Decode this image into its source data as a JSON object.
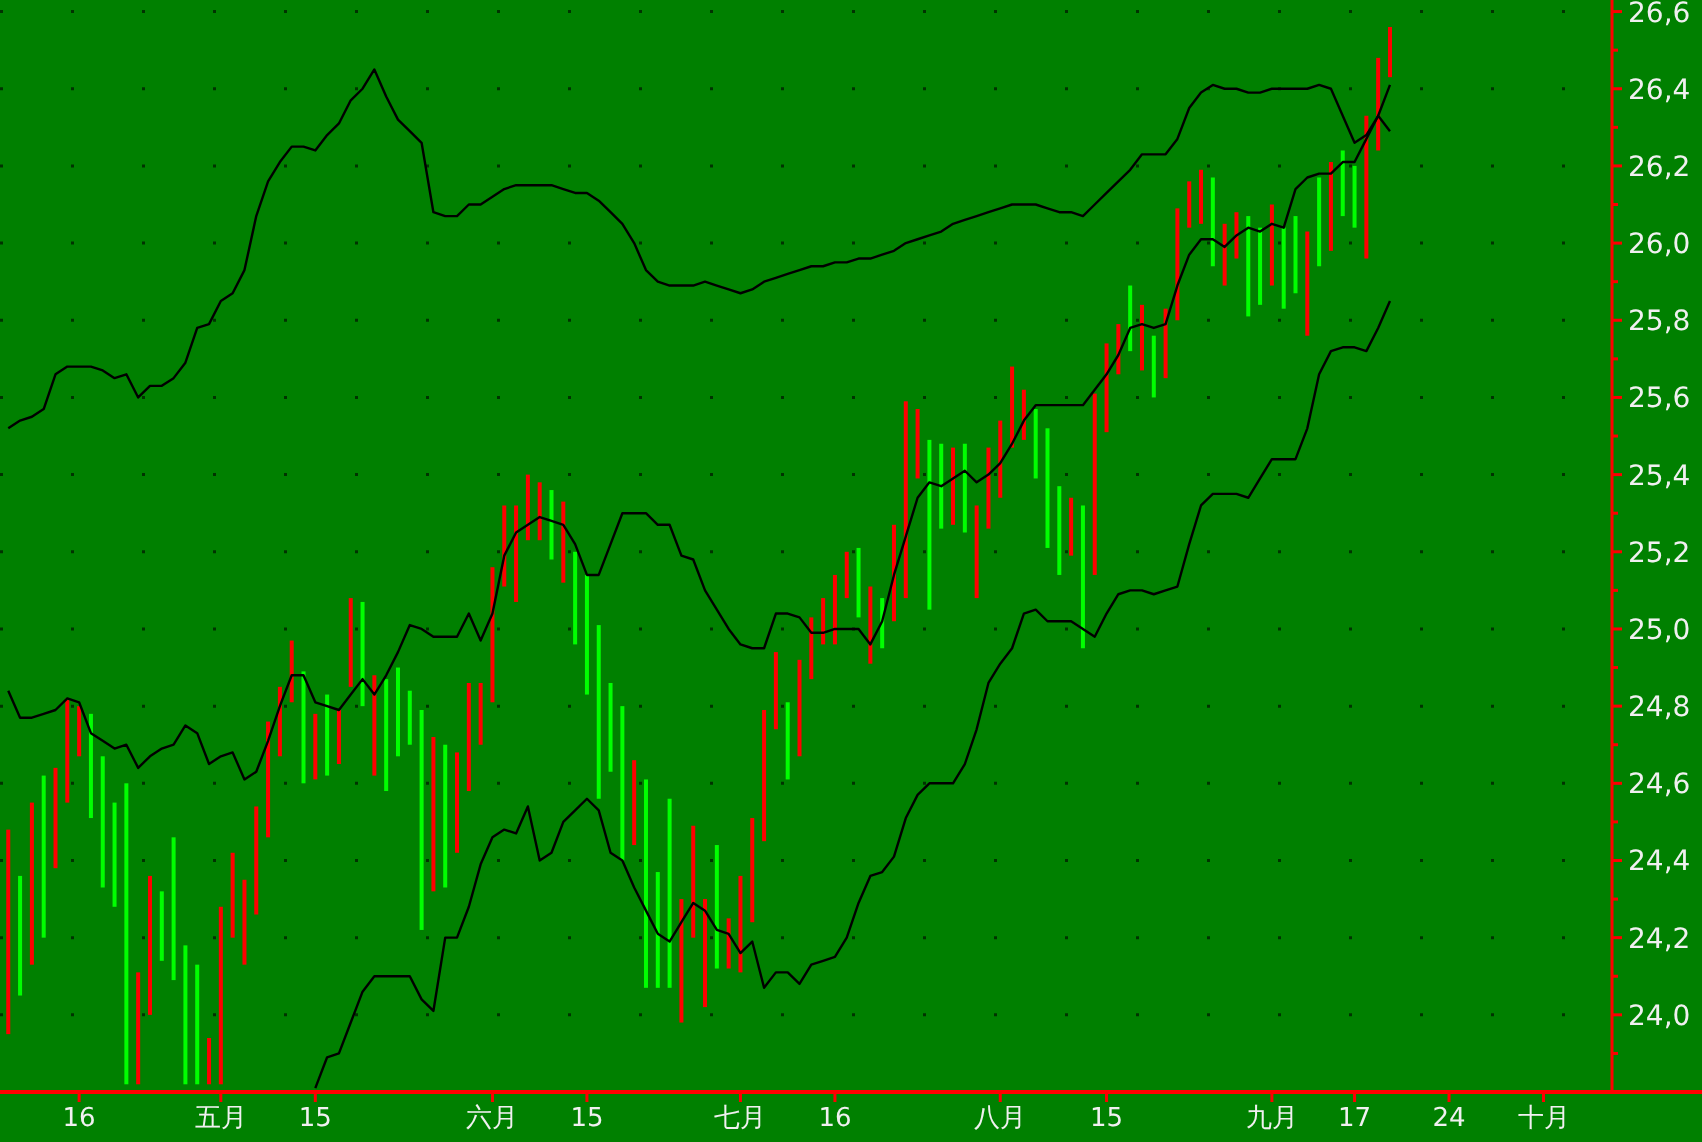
{
  "chart_data": {
    "type": "bar",
    "ylim": [
      23.8,
      26.63
    ],
    "grid": true,
    "categories": [
      null,
      null,
      null,
      null,
      null,
      null,
      "16",
      null,
      null,
      null,
      null,
      null,
      null,
      null,
      null,
      null,
      null,
      null,
      "五月",
      null,
      null,
      null,
      null,
      null,
      null,
      null,
      "15",
      null,
      null,
      null,
      null,
      null,
      null,
      null,
      null,
      null,
      null,
      null,
      null,
      null,
      null,
      "六月",
      null,
      null,
      null,
      null,
      null,
      null,
      null,
      "15",
      null,
      null,
      null,
      null,
      null,
      null,
      null,
      null,
      null,
      null,
      null,
      null,
      "七月",
      null,
      null,
      null,
      null,
      null,
      null,
      null,
      "16",
      null,
      null,
      null,
      null,
      null,
      null,
      null,
      null,
      null,
      null,
      null,
      null,
      null,
      "八月",
      null,
      null,
      null,
      null,
      null,
      null,
      null,
      null,
      "15",
      null,
      null,
      null,
      null,
      null,
      null,
      null,
      null,
      null,
      null,
      null,
      null,
      null,
      "九月",
      null,
      null,
      null,
      null,
      null,
      null,
      "17",
      null,
      null,
      null,
      null,
      null,
      null,
      null,
      "24",
      null,
      null,
      null,
      null,
      null,
      null,
      null,
      "十月",
      null,
      null,
      null,
      null,
      null,
      null
    ],
    "yticks": [
      {
        "value": 23.9,
        "label": null
      },
      {
        "value": 24.0,
        "label": "24,0"
      },
      {
        "value": 24.1,
        "label": null
      },
      {
        "value": 24.2,
        "label": "24,2"
      },
      {
        "value": 24.3,
        "label": null
      },
      {
        "value": 24.4,
        "label": "24,4"
      },
      {
        "value": 24.5,
        "label": null
      },
      {
        "value": 24.6,
        "label": "24,6"
      },
      {
        "value": 24.7,
        "label": null
      },
      {
        "value": 24.8,
        "label": "24,8"
      },
      {
        "value": 24.9,
        "label": null
      },
      {
        "value": 25.0,
        "label": "25,0"
      },
      {
        "value": 25.1,
        "label": null
      },
      {
        "value": 25.2,
        "label": "25,2"
      },
      {
        "value": 25.3,
        "label": null
      },
      {
        "value": 25.4,
        "label": "25,4"
      },
      {
        "value": 25.5,
        "label": null
      },
      {
        "value": 25.6,
        "label": "25,6"
      },
      {
        "value": 25.7,
        "label": null
      },
      {
        "value": 25.8,
        "label": "25,8"
      },
      {
        "value": 25.9,
        "label": null
      },
      {
        "value": 26.0,
        "label": "26,0"
      },
      {
        "value": 26.1,
        "label": null
      },
      {
        "value": 26.2,
        "label": "26,2"
      },
      {
        "value": 26.3,
        "label": null
      },
      {
        "value": 26.4,
        "label": "26,4"
      },
      {
        "value": 26.5,
        "label": null
      },
      {
        "value": 26.6,
        "label": "26,6"
      }
    ],
    "series": [
      {
        "base": [
          23.95,
          24.05,
          24.13,
          24.2,
          24.38,
          24.55,
          24.67,
          24.51,
          24.33,
          24.28,
          23.82,
          23.82,
          24.0,
          24.14,
          24.09,
          23.82,
          23.82,
          23.82,
          23.82,
          24.2,
          24.13,
          24.26,
          24.46,
          24.67,
          24.81,
          24.6,
          24.61,
          24.62,
          24.65,
          24.85,
          24.8,
          24.62,
          24.58,
          24.67,
          24.7,
          24.22,
          24.32,
          24.33,
          24.42,
          24.58,
          24.7,
          24.81,
          25.11,
          25.07,
          25.23,
          25.23,
          25.18,
          25.12,
          24.96,
          24.83,
          24.56,
          24.63,
          24.4,
          24.44,
          24.07,
          24.07,
          24.07,
          23.98,
          24.2,
          24.02,
          24.12,
          24.12,
          24.11,
          24.24,
          24.45,
          24.74,
          24.61,
          24.67,
          24.87,
          24.96,
          24.96,
          25.08,
          25.03,
          24.91,
          24.95,
          25.02,
          25.08,
          25.39,
          25.05,
          25.26,
          25.27,
          25.25,
          25.08,
          25.26,
          25.34,
          25.47,
          25.49,
          25.39,
          25.21,
          25.14,
          25.19,
          24.95,
          25.14,
          25.51,
          25.66,
          25.72,
          25.67,
          25.6,
          25.65,
          25.8,
          26.04,
          26.05,
          25.94,
          25.89,
          25.96,
          25.81,
          25.84,
          25.89,
          25.83,
          25.87,
          25.76,
          25.94,
          25.98,
          26.07,
          26.04,
          25.96,
          26.24,
          26.43,
          null,
          null,
          null,
          null,
          null,
          null,
          null,
          null,
          null,
          null,
          null,
          null,
          null,
          null,
          null,
          null,
          null,
          null,
          null
        ],
        "values": [
          0.53,
          0.31,
          0.42,
          0.42,
          0.26,
          0.27,
          0.13,
          0.27,
          0.34,
          0.27,
          0.78,
          0.29,
          0.36,
          0.18,
          0.37,
          0.36,
          0.31,
          0.12,
          0.46,
          0.22,
          0.22,
          0.28,
          0.3,
          0.18,
          0.16,
          0.29,
          0.17,
          0.21,
          0.14,
          0.23,
          0.27,
          0.26,
          0.29,
          0.23,
          0.14,
          0.57,
          0.4,
          0.37,
          0.26,
          0.28,
          0.16,
          0.35,
          0.21,
          0.25,
          0.17,
          0.15,
          0.18,
          0.21,
          0.24,
          0.31,
          0.45,
          0.23,
          0.4,
          0.22,
          0.54,
          0.3,
          0.49,
          0.32,
          0.29,
          0.28,
          0.32,
          0.13,
          0.25,
          0.27,
          0.34,
          0.2,
          0.2,
          0.25,
          0.16,
          0.12,
          0.18,
          0.12,
          0.18,
          0.2,
          0.13,
          0.25,
          0.51,
          0.18,
          0.44,
          0.22,
          0.2,
          0.23,
          0.24,
          0.21,
          0.2,
          0.21,
          0.13,
          0.18,
          0.31,
          0.23,
          0.15,
          0.37,
          0.47,
          0.23,
          0.13,
          0.17,
          0.17,
          0.16,
          0.18,
          0.29,
          0.12,
          0.14,
          0.23,
          0.16,
          0.12,
          0.26,
          0.2,
          0.21,
          0.21,
          0.2,
          0.27,
          0.23,
          0.23,
          0.17,
          0.16,
          0.37,
          0.24,
          0.13,
          null,
          null,
          null,
          null,
          null,
          null,
          null,
          null,
          null,
          null,
          null,
          null,
          null,
          null,
          null,
          null,
          null,
          null,
          null
        ],
        "colors": [
          "#ff0000",
          "#00ff00",
          "#ff0000",
          "#00ff00",
          "#ff0000",
          "#ff0000",
          "#ff0000",
          "#00ff00",
          "#00ff00",
          "#00ff00",
          "#00ff00",
          "#ff0000",
          "#ff0000",
          "#00ff00",
          "#00ff00",
          "#00ff00",
          "#00ff00",
          "#ff0000",
          "#ff0000",
          "#ff0000",
          "#ff0000",
          "#ff0000",
          "#ff0000",
          "#ff0000",
          "#ff0000",
          "#00ff00",
          "#ff0000",
          "#00ff00",
          "#ff0000",
          "#ff0000",
          "#00ff00",
          "#ff0000",
          "#00ff00",
          "#00ff00",
          "#00ff00",
          "#00ff00",
          "#ff0000",
          "#00ff00",
          "#ff0000",
          "#ff0000",
          "#ff0000",
          "#ff0000",
          "#ff0000",
          "#ff0000",
          "#ff0000",
          "#ff0000",
          "#00ff00",
          "#ff0000",
          "#00ff00",
          "#00ff00",
          "#00ff00",
          "#00ff00",
          "#00ff00",
          "#ff0000",
          "#00ff00",
          "#00ff00",
          "#00ff00",
          "#ff0000",
          "#ff0000",
          "#ff0000",
          "#00ff00",
          "#ff0000",
          "#ff0000",
          "#ff0000",
          "#ff0000",
          "#ff0000",
          "#00ff00",
          "#ff0000",
          "#ff0000",
          "#ff0000",
          "#ff0000",
          "#ff0000",
          "#00ff00",
          "#ff0000",
          "#00ff00",
          "#ff0000",
          "#ff0000",
          "#ff0000",
          "#00ff00",
          "#00ff00",
          "#ff0000",
          "#00ff00",
          "#ff0000",
          "#ff0000",
          "#ff0000",
          "#ff0000",
          "#ff0000",
          "#00ff00",
          "#00ff00",
          "#00ff00",
          "#ff0000",
          "#00ff00",
          "#ff0000",
          "#ff0000",
          "#ff0000",
          "#00ff00",
          "#ff0000",
          "#00ff00",
          "#ff0000",
          "#ff0000",
          "#ff0000",
          "#ff0000",
          "#00ff00",
          "#ff0000",
          "#ff0000",
          "#00ff00",
          "#00ff00",
          "#ff0000",
          "#00ff00",
          "#00ff00",
          "#ff0000",
          "#00ff00",
          "#ff0000",
          "#00ff00",
          "#00ff00",
          "#ff0000",
          "#ff0000",
          "#ff0000",
          null,
          null,
          null,
          null,
          null,
          null,
          null,
          null,
          null,
          null,
          null,
          null,
          null,
          null,
          null,
          null,
          null,
          null,
          null
        ]
      },
      {
        "type": "line",
        "color": "#000000",
        "values": [
          25.52,
          25.54,
          25.55,
          25.57,
          25.66,
          25.68,
          25.68,
          25.68,
          25.67,
          25.65,
          25.66,
          25.6,
          25.63,
          25.63,
          25.65,
          25.69,
          25.78,
          25.79,
          25.85,
          25.87,
          25.93,
          26.07,
          26.16,
          26.21,
          26.25,
          26.25,
          26.24,
          26.28,
          26.31,
          26.37,
          26.4,
          26.45,
          26.38,
          26.32,
          26.29,
          26.26,
          26.08,
          26.07,
          26.07,
          26.1,
          26.1,
          26.12,
          26.14,
          26.15,
          26.15,
          26.15,
          26.15,
          26.14,
          26.13,
          26.13,
          26.11,
          26.08,
          26.05,
          26.0,
          25.93,
          25.9,
          25.89,
          25.89,
          25.89,
          25.9,
          25.89,
          25.88,
          25.87,
          25.88,
          25.9,
          25.91,
          25.92,
          25.93,
          25.94,
          25.94,
          25.95,
          25.95,
          25.96,
          25.96,
          25.97,
          25.98,
          26.0,
          26.01,
          26.02,
          26.03,
          26.05,
          26.06,
          26.07,
          26.08,
          26.09,
          26.1,
          26.1,
          26.1,
          26.09,
          26.08,
          26.08,
          26.07,
          26.1,
          26.13,
          26.16,
          26.19,
          26.23,
          26.23,
          26.23,
          26.27,
          26.35,
          26.39,
          26.41,
          26.4,
          26.4,
          26.39,
          26.39,
          26.4,
          26.4,
          26.4,
          26.4,
          26.41,
          26.4,
          26.33,
          26.26,
          26.28,
          26.33,
          26.41,
          null,
          null,
          null,
          null,
          null,
          null,
          null,
          null,
          null,
          null,
          null,
          null,
          null,
          null,
          null,
          null,
          null,
          null,
          null
        ]
      },
      {
        "type": "line",
        "color": "#000000",
        "values": [
          24.84,
          24.77,
          24.77,
          24.78,
          24.79,
          24.82,
          24.81,
          24.73,
          24.71,
          24.69,
          24.7,
          24.64,
          24.67,
          24.69,
          24.7,
          24.75,
          24.73,
          24.65,
          24.67,
          24.68,
          24.61,
          24.63,
          24.71,
          24.8,
          24.88,
          24.88,
          24.81,
          24.8,
          24.79,
          24.83,
          24.87,
          24.83,
          24.88,
          24.94,
          25.01,
          25.0,
          24.98,
          24.98,
          24.98,
          25.04,
          24.97,
          25.04,
          25.19,
          25.25,
          25.27,
          25.29,
          25.28,
          25.27,
          25.22,
          25.14,
          25.14,
          25.22,
          25.3,
          25.3,
          25.3,
          25.27,
          25.27,
          25.19,
          25.18,
          25.1,
          25.05,
          25.0,
          24.96,
          24.95,
          24.95,
          25.04,
          25.04,
          25.03,
          24.99,
          24.99,
          25.0,
          25.0,
          25.0,
          24.96,
          25.02,
          25.14,
          25.24,
          25.34,
          25.38,
          25.37,
          25.39,
          25.41,
          25.38,
          25.4,
          25.43,
          25.48,
          25.54,
          25.58,
          25.58,
          25.58,
          25.58,
          25.58,
          25.62,
          25.66,
          25.71,
          25.78,
          25.79,
          25.78,
          25.79,
          25.89,
          25.97,
          26.01,
          26.01,
          25.99,
          26.02,
          26.04,
          26.03,
          26.05,
          26.04,
          26.14,
          26.17,
          26.18,
          26.18,
          26.21,
          26.21,
          26.27,
          26.33,
          26.29,
          null,
          null,
          null,
          null,
          null,
          null,
          null,
          null,
          null,
          null,
          null,
          null,
          null,
          null,
          null,
          null,
          null,
          null,
          null
        ]
      },
      {
        "type": "line",
        "color": "#000000",
        "values": [
          null,
          null,
          null,
          null,
          null,
          null,
          null,
          null,
          null,
          null,
          null,
          null,
          null,
          null,
          null,
          null,
          null,
          null,
          null,
          null,
          null,
          null,
          null,
          null,
          null,
          null,
          23.81,
          23.89,
          23.9,
          23.98,
          24.06,
          24.1,
          24.1,
          24.1,
          24.1,
          24.04,
          24.01,
          24.2,
          24.2,
          24.28,
          24.39,
          24.46,
          24.48,
          24.47,
          24.54,
          24.4,
          24.42,
          24.5,
          24.53,
          24.56,
          24.53,
          24.42,
          24.4,
          24.33,
          24.27,
          24.21,
          24.19,
          24.24,
          24.29,
          24.27,
          24.22,
          24.21,
          24.16,
          24.19,
          24.07,
          24.11,
          24.11,
          24.08,
          24.13,
          24.14,
          24.15,
          24.2,
          24.29,
          24.36,
          24.37,
          24.41,
          24.51,
          24.57,
          24.6,
          24.6,
          24.6,
          24.65,
          24.74,
          24.86,
          24.91,
          24.95,
          25.04,
          25.05,
          25.02,
          25.02,
          25.02,
          25.0,
          24.98,
          25.04,
          25.09,
          25.1,
          25.1,
          25.09,
          25.1,
          25.11,
          25.22,
          25.32,
          25.35,
          25.35,
          25.35,
          25.34,
          25.39,
          25.44,
          25.44,
          25.44,
          25.52,
          25.66,
          25.72,
          25.73,
          25.73,
          25.72,
          25.78,
          25.85,
          null,
          null,
          null,
          null,
          null,
          null,
          null,
          null,
          null,
          null,
          null,
          null,
          null,
          null,
          null,
          null,
          null,
          null,
          null
        ]
      }
    ]
  }
}
